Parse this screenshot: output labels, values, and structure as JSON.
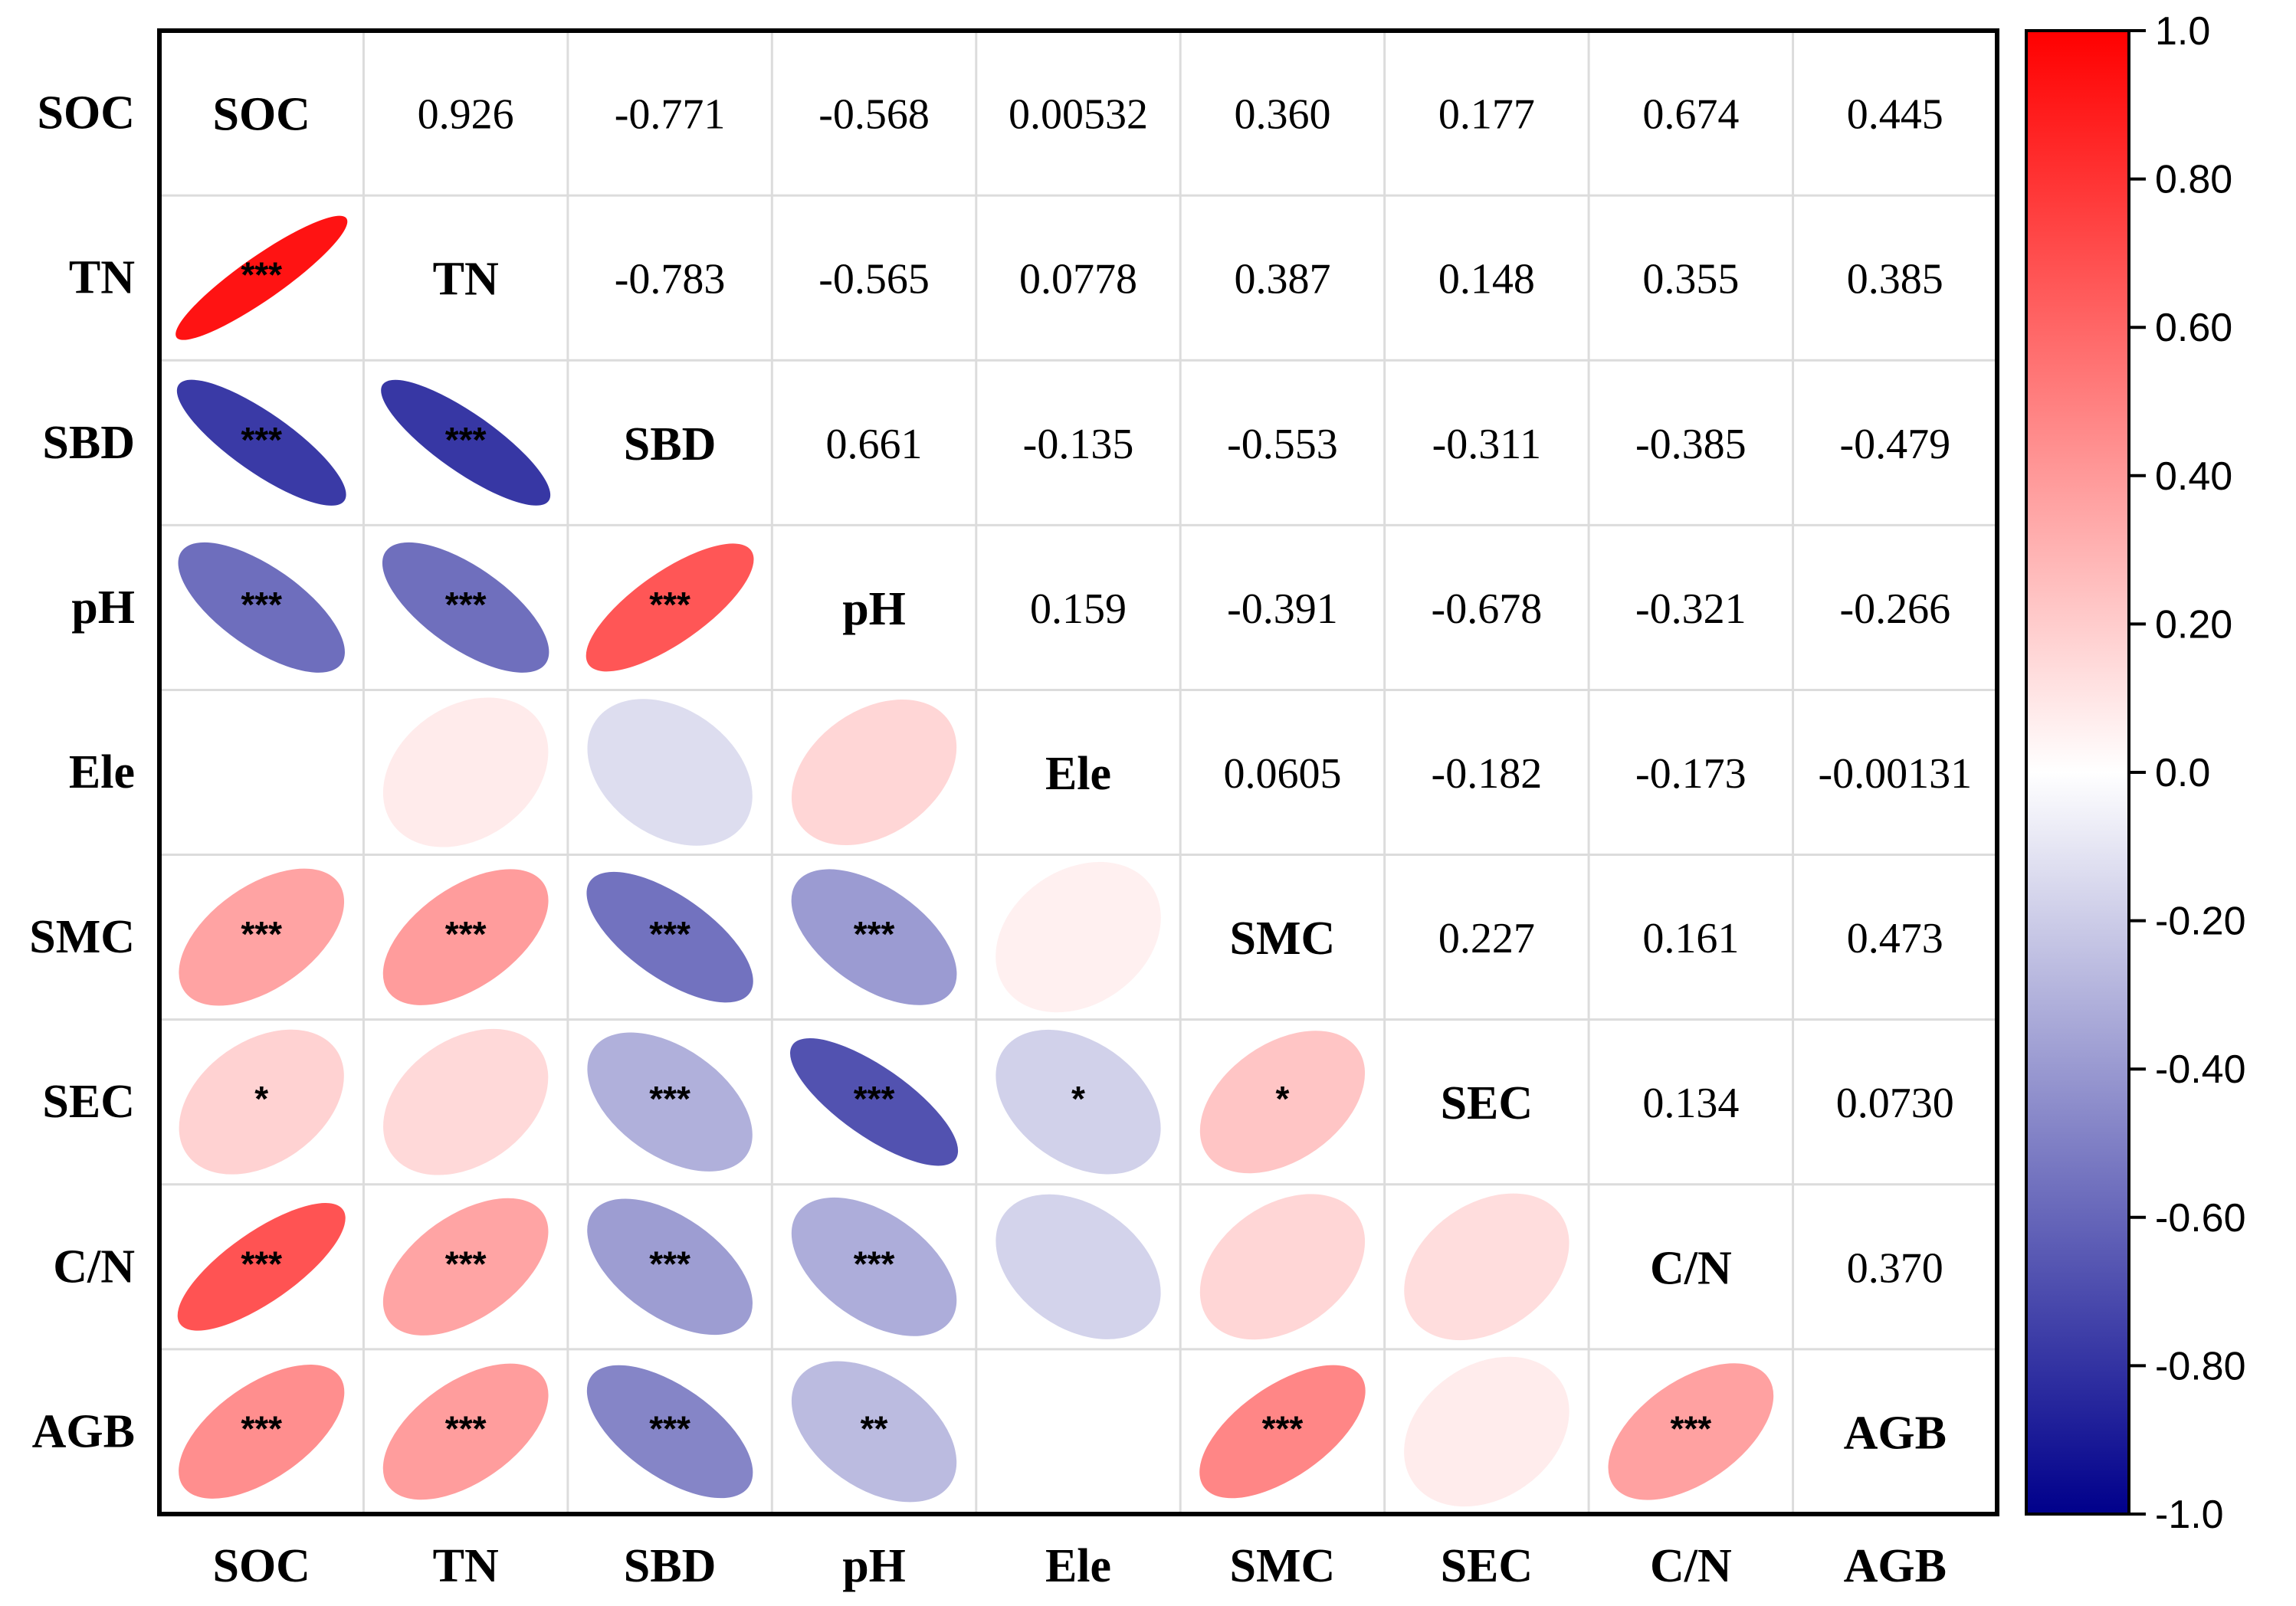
{
  "chart_data": {
    "type": "heatmap",
    "subtype": "correlation-matrix-ellipse",
    "variables": [
      "SOC",
      "TN",
      "SBD",
      "pH",
      "Ele",
      "SMC",
      "SEC",
      "C/N",
      "AGB"
    ],
    "upper_text": [
      [
        "",
        "0.926",
        "-0.771",
        "-0.568",
        "0.00532",
        "0.360",
        "0.177",
        "0.674",
        "0.445"
      ],
      [
        "",
        "",
        "-0.783",
        "-0.565",
        "0.0778",
        "0.387",
        "0.148",
        "0.355",
        "0.385"
      ],
      [
        "",
        "",
        "",
        "0.661",
        "-0.135",
        "-0.553",
        "-0.311",
        "-0.385",
        "-0.479"
      ],
      [
        "",
        "",
        "",
        "",
        "0.159",
        "-0.391",
        "-0.678",
        "-0.321",
        "-0.266"
      ],
      [
        "",
        "",
        "",
        "",
        "",
        "0.0605",
        "-0.182",
        "-0.173",
        "-0.00131"
      ],
      [
        "",
        "",
        "",
        "",
        "",
        "",
        "0.227",
        "0.161",
        "0.473"
      ],
      [
        "",
        "",
        "",
        "",
        "",
        "",
        "",
        "0.134",
        "0.0730"
      ],
      [
        "",
        "",
        "",
        "",
        "",
        "",
        "",
        "",
        "0.370"
      ],
      [
        "",
        "",
        "",
        "",
        "",
        "",
        "",
        "",
        ""
      ]
    ],
    "significance": [
      [
        "",
        "",
        "",
        "",
        "",
        "",
        "",
        "",
        ""
      ],
      [
        "***",
        "",
        "",
        "",
        "",
        "",
        "",
        "",
        ""
      ],
      [
        "***",
        "***",
        "",
        "",
        "",
        "",
        "",
        "",
        ""
      ],
      [
        "***",
        "***",
        "***",
        "",
        "",
        "",
        "",
        "",
        ""
      ],
      [
        "",
        "",
        "",
        "",
        "",
        "",
        "",
        "",
        ""
      ],
      [
        "***",
        "***",
        "***",
        "***",
        "",
        "",
        "",
        "",
        ""
      ],
      [
        "*",
        "",
        "***",
        "***",
        "*",
        "*",
        "",
        "",
        ""
      ],
      [
        "***",
        "***",
        "***",
        "***",
        "",
        "",
        "",
        "",
        ""
      ],
      [
        "***",
        "***",
        "***",
        "**",
        "",
        "***",
        "",
        "***",
        ""
      ]
    ],
    "colorbar": {
      "range": [
        -1.0,
        1.0
      ],
      "ticks": [
        "1.0",
        "0.80",
        "0.60",
        "0.40",
        "0.20",
        "0.0",
        "-0.20",
        "-0.40",
        "-0.60",
        "-0.80",
        "-1.0"
      ],
      "colors": {
        "low": "#00008b",
        "mid": "#ffffff",
        "high": "#ff0000"
      }
    },
    "grid": true,
    "legend": "right"
  }
}
